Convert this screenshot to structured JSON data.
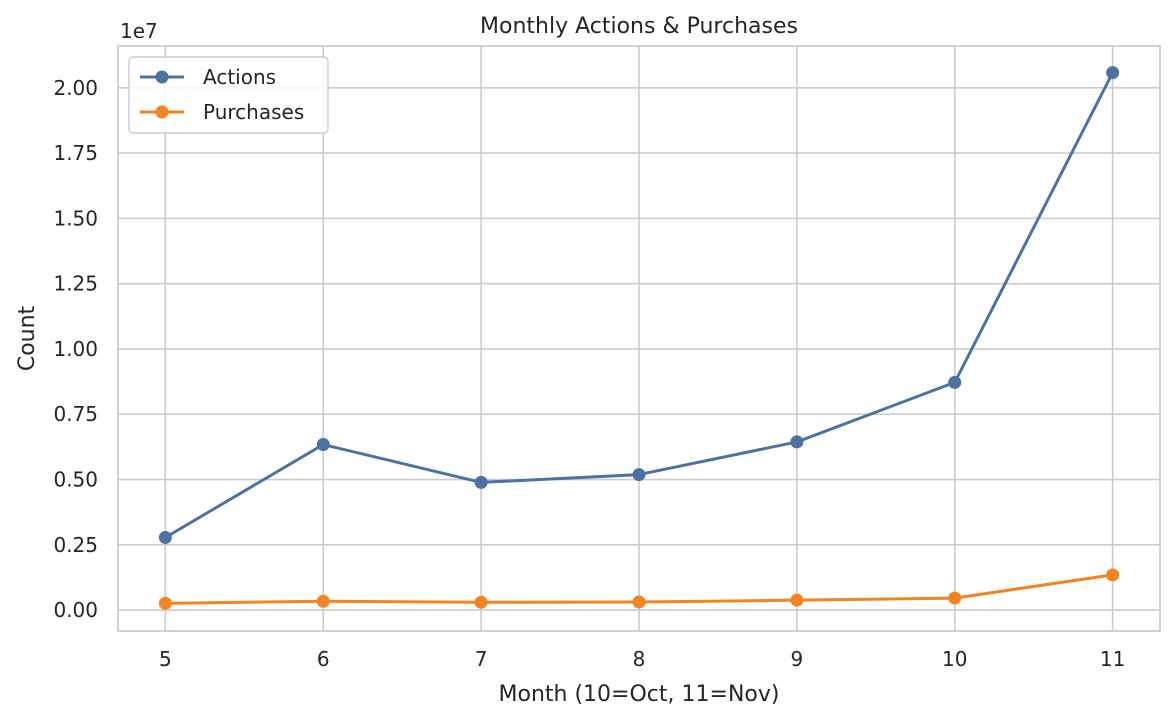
{
  "chart_data": {
    "type": "line",
    "title": "Monthly Actions & Purchases",
    "xlabel": "Month (10=Oct, 11=Nov)",
    "ylabel": "Count",
    "y_offset_label": "1e7",
    "x": [
      5,
      6,
      7,
      8,
      9,
      10,
      11
    ],
    "x_ticks": [
      "5",
      "6",
      "7",
      "8",
      "9",
      "10",
      "11"
    ],
    "y_ticks": [
      0,
      2500000,
      5000000,
      7500000,
      10000000,
      12500000,
      15000000,
      17500000,
      20000000
    ],
    "y_tick_labels": [
      "0.00",
      "0.25",
      "0.50",
      "0.75",
      "1.00",
      "1.25",
      "1.50",
      "1.75",
      "2.00"
    ],
    "xlim": [
      4.7,
      11.3
    ],
    "ylim": [
      -800000,
      21600000
    ],
    "grid": true,
    "legend_position": "top-left",
    "series": [
      {
        "name": "Actions",
        "color": "#4c72a4",
        "marker": "circle",
        "values": [
          2780000,
          6340000,
          4890000,
          5190000,
          6440000,
          8720000,
          20580000
        ]
      },
      {
        "name": "Purchases",
        "color": "#f28522",
        "marker": "circle",
        "values": [
          260000,
          340000,
          300000,
          310000,
          380000,
          460000,
          1350000
        ]
      }
    ]
  }
}
